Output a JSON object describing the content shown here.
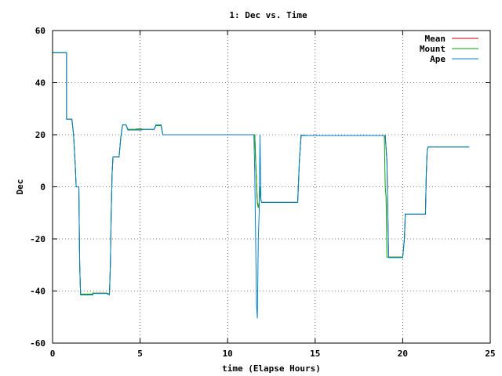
{
  "chart_data": {
    "type": "line",
    "title": "1: Dec vs. Time",
    "xlabel": "time (Elapse Hours)",
    "ylabel": "Dec",
    "xlim": [
      0,
      25
    ],
    "ylim": [
      -60,
      60
    ],
    "xticks": [
      0,
      5,
      10,
      15,
      20,
      25
    ],
    "yticks": [
      -60,
      -40,
      -20,
      0,
      20,
      40,
      60
    ],
    "grid": true,
    "legend_position": "top-right",
    "series": [
      {
        "name": "Mean",
        "color": "#cc0000",
        "points": [
          [
            0,
            51.5
          ],
          [
            0.8,
            51.5
          ],
          [
            0.8,
            26
          ],
          [
            1.1,
            26
          ],
          [
            1.2,
            20
          ],
          [
            1.3,
            8
          ],
          [
            1.35,
            0
          ],
          [
            1.5,
            0
          ],
          [
            1.55,
            -30
          ],
          [
            1.6,
            -41.2
          ],
          [
            2.3,
            -41.2
          ],
          [
            2.3,
            -40.8
          ],
          [
            3.1,
            -40.8
          ],
          [
            3.25,
            -41.2
          ],
          [
            3.3,
            -30
          ],
          [
            3.35,
            -10
          ],
          [
            3.4,
            5
          ],
          [
            3.45,
            11.5
          ],
          [
            3.8,
            11.5
          ],
          [
            3.9,
            19
          ],
          [
            4.0,
            23.8
          ],
          [
            4.2,
            23.8
          ],
          [
            4.3,
            22
          ],
          [
            4.8,
            22
          ],
          [
            4.8,
            22.2
          ],
          [
            5.1,
            22.2
          ],
          [
            5.2,
            22
          ],
          [
            5.8,
            22
          ],
          [
            5.9,
            23.5
          ],
          [
            6.2,
            23.5
          ],
          [
            6.3,
            20
          ],
          [
            11.55,
            20
          ],
          [
            11.6,
            10
          ],
          [
            11.65,
            2
          ],
          [
            11.7,
            -6
          ],
          [
            11.75,
            -8
          ],
          [
            11.8,
            -6
          ],
          [
            11.85,
            0
          ],
          [
            11.9,
            -5
          ],
          [
            11.95,
            -6
          ],
          [
            14.0,
            -6
          ],
          [
            14.1,
            10
          ],
          [
            14.2,
            19.8
          ],
          [
            14.4,
            19.8
          ],
          [
            14.5,
            19.7
          ],
          [
            19.0,
            19.7
          ],
          [
            19.1,
            10
          ],
          [
            19.15,
            -10
          ],
          [
            19.2,
            -27
          ],
          [
            20.0,
            -27
          ],
          [
            20.1,
            -20
          ],
          [
            20.15,
            -10.5
          ],
          [
            21.3,
            -10.5
          ],
          [
            21.35,
            5
          ],
          [
            21.4,
            14
          ],
          [
            21.45,
            15.3
          ],
          [
            23.8,
            15.3
          ]
        ]
      },
      {
        "name": "Mount",
        "color": "#00aa00",
        "points": [
          [
            0,
            51.5
          ],
          [
            0.8,
            51.5
          ],
          [
            0.8,
            26
          ],
          [
            1.1,
            26
          ],
          [
            1.2,
            20
          ],
          [
            1.3,
            8
          ],
          [
            1.35,
            0
          ],
          [
            1.5,
            0
          ],
          [
            1.55,
            -30
          ],
          [
            1.6,
            -41.2
          ],
          [
            2.3,
            -41.2
          ],
          [
            2.3,
            -40.8
          ],
          [
            3.1,
            -40.8
          ],
          [
            3.25,
            -41.2
          ],
          [
            3.3,
            -30
          ],
          [
            3.35,
            -10
          ],
          [
            3.4,
            5
          ],
          [
            3.45,
            11.5
          ],
          [
            3.8,
            11.5
          ],
          [
            3.9,
            19
          ],
          [
            4.0,
            23.8
          ],
          [
            4.2,
            23.8
          ],
          [
            4.3,
            22
          ],
          [
            4.8,
            22
          ],
          [
            4.8,
            22.2
          ],
          [
            5.1,
            22.2
          ],
          [
            5.2,
            22
          ],
          [
            5.8,
            22
          ],
          [
            5.9,
            23.5
          ],
          [
            6.2,
            23.5
          ],
          [
            6.3,
            20
          ],
          [
            11.55,
            20
          ],
          [
            11.6,
            10
          ],
          [
            11.65,
            2
          ],
          [
            11.7,
            -6
          ],
          [
            11.75,
            -8
          ],
          [
            11.8,
            -6
          ],
          [
            11.85,
            0
          ],
          [
            11.9,
            -5
          ],
          [
            11.95,
            -6
          ],
          [
            14.0,
            -6
          ],
          [
            14.1,
            10
          ],
          [
            14.2,
            19.8
          ],
          [
            14.4,
            19.8
          ],
          [
            14.5,
            19.7
          ],
          [
            18.95,
            19.7
          ],
          [
            19.0,
            0
          ],
          [
            19.05,
            -4
          ],
          [
            19.1,
            -27
          ],
          [
            20.0,
            -27
          ],
          [
            20.1,
            -20
          ],
          [
            20.15,
            -10.5
          ],
          [
            21.3,
            -10.5
          ],
          [
            21.35,
            5
          ],
          [
            21.4,
            14
          ],
          [
            21.45,
            15.3
          ],
          [
            23.8,
            15.3
          ]
        ]
      },
      {
        "name": "Ape",
        "color": "#0080d0",
        "points": [
          [
            0,
            51.5
          ],
          [
            0.8,
            51.5
          ],
          [
            0.8,
            26
          ],
          [
            1.1,
            26
          ],
          [
            1.2,
            20
          ],
          [
            1.3,
            8
          ],
          [
            1.35,
            0
          ],
          [
            1.5,
            0
          ],
          [
            1.55,
            -30
          ],
          [
            1.6,
            -41.5
          ],
          [
            2.3,
            -41.5
          ],
          [
            2.3,
            -41
          ],
          [
            3.1,
            -41
          ],
          [
            3.25,
            -41.5
          ],
          [
            3.3,
            -30
          ],
          [
            3.35,
            -10
          ],
          [
            3.4,
            5
          ],
          [
            3.45,
            11.5
          ],
          [
            3.8,
            11.5
          ],
          [
            3.9,
            19
          ],
          [
            4.0,
            23.8
          ],
          [
            4.2,
            23.8
          ],
          [
            4.3,
            21.8
          ],
          [
            4.8,
            21.8
          ],
          [
            4.8,
            21.8
          ],
          [
            5.1,
            21.8
          ],
          [
            5.2,
            22
          ],
          [
            5.8,
            22
          ],
          [
            5.9,
            23.8
          ],
          [
            6.2,
            23.8
          ],
          [
            6.3,
            20
          ],
          [
            11.5,
            20
          ],
          [
            11.55,
            5
          ],
          [
            11.6,
            -20
          ],
          [
            11.65,
            -45
          ],
          [
            11.7,
            -50.5
          ],
          [
            11.75,
            -20
          ],
          [
            11.8,
            -10
          ],
          [
            11.85,
            20
          ],
          [
            11.9,
            -5
          ],
          [
            11.95,
            -6
          ],
          [
            14.0,
            -6
          ],
          [
            14.1,
            10
          ],
          [
            14.2,
            19.8
          ],
          [
            14.4,
            19.8
          ],
          [
            14.5,
            19.7
          ],
          [
            19.0,
            19.7
          ],
          [
            19.1,
            10
          ],
          [
            19.15,
            -10
          ],
          [
            19.2,
            -27.2
          ],
          [
            20.0,
            -27.2
          ],
          [
            20.1,
            -20
          ],
          [
            20.15,
            -10.5
          ],
          [
            21.3,
            -10.5
          ],
          [
            21.35,
            5
          ],
          [
            21.4,
            14
          ],
          [
            21.45,
            15.3
          ],
          [
            23.8,
            15.3
          ]
        ]
      }
    ]
  }
}
